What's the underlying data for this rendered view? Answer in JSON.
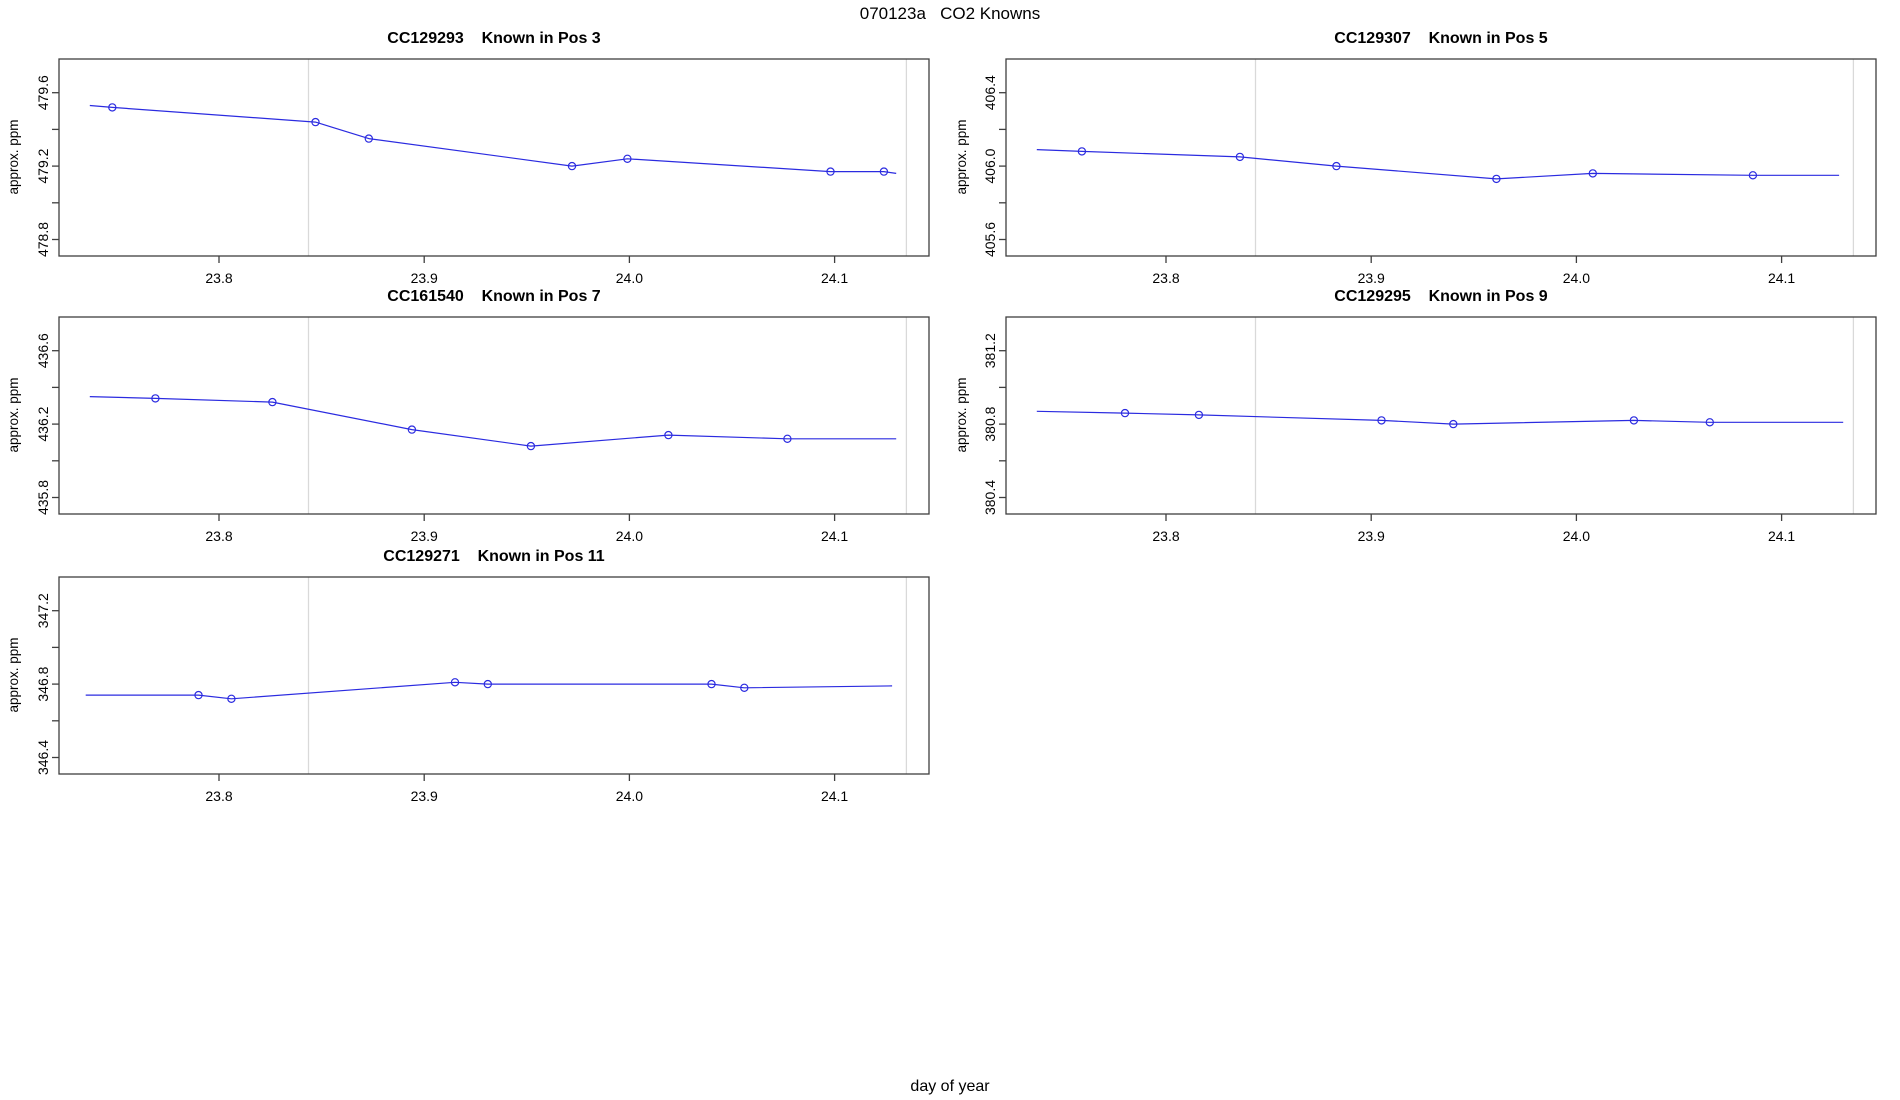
{
  "page_title": "070123a   CO2 Knowns",
  "labels": {
    "xlabel": "day of year",
    "ylabel": "approx. ppm"
  },
  "colors": {
    "line_blue": "#2b2be0",
    "grid_gray": "#d9d9d9",
    "axis_dark": "#3f3f3f",
    "text_black": "#000000",
    "background": "#ffffff"
  },
  "x_axis": {
    "domain": [
      23.722,
      24.146
    ],
    "ticks": [
      23.8,
      23.9,
      24.0,
      24.1
    ],
    "tick_labels": [
      "23.8",
      "23.9",
      "24.0",
      "24.1"
    ],
    "gridlines": [
      23.8436,
      24.135
    ]
  },
  "chart_data": [
    {
      "type": "line",
      "station": "CC129293",
      "position_label": "Known in Pos 3",
      "title": "CC129293    Known in Pos 3",
      "xlabel": "day of year",
      "ylabel": "approx. ppm",
      "row": 0,
      "col": 0,
      "y_ticks": [
        478.8,
        479.0,
        479.2,
        479.4,
        479.6
      ],
      "y_tick_labels": [
        "478.8",
        "",
        "479.2",
        "",
        "479.6"
      ],
      "ylim": [
        478.71,
        479.78
      ],
      "x": [
        23.748,
        23.847,
        23.873,
        23.972,
        23.999,
        24.098,
        24.124
      ],
      "y": [
        479.52,
        479.44,
        479.35,
        479.2,
        479.24,
        479.17,
        479.17
      ],
      "line_x": [
        23.737,
        23.748,
        23.847,
        23.873,
        23.972,
        23.999,
        24.098,
        24.124,
        24.13
      ],
      "line_y": [
        479.53,
        479.52,
        479.44,
        479.35,
        479.2,
        479.24,
        479.17,
        479.17,
        479.16
      ]
    },
    {
      "type": "line",
      "station": "CC129307",
      "position_label": "Known in Pos 5",
      "title": "CC129307    Known in Pos 5",
      "xlabel": "day of year",
      "ylabel": "approx. ppm",
      "row": 0,
      "col": 1,
      "y_ticks": [
        405.6,
        405.8,
        406.0,
        406.2,
        406.4
      ],
      "y_tick_labels": [
        "405.6",
        "",
        "406.0",
        "",
        "406.4"
      ],
      "ylim": [
        405.51,
        406.58
      ],
      "x": [
        23.759,
        23.836,
        23.883,
        23.961,
        24.008,
        24.086
      ],
      "y": [
        406.08,
        406.05,
        406.0,
        405.93,
        405.96,
        405.95
      ],
      "line_x": [
        23.737,
        23.759,
        23.836,
        23.883,
        23.961,
        24.008,
        24.086,
        24.128
      ],
      "line_y": [
        406.09,
        406.08,
        406.05,
        406.0,
        405.93,
        405.96,
        405.95,
        405.95
      ]
    },
    {
      "type": "line",
      "station": "CC161540",
      "position_label": "Known in Pos 7",
      "title": "CC161540    Known in Pos 7",
      "xlabel": "day of year",
      "ylabel": "approx. ppm",
      "row": 1,
      "col": 0,
      "y_ticks": [
        435.8,
        436.0,
        436.2,
        436.4,
        436.6
      ],
      "y_tick_labels": [
        "435.8",
        "",
        "436.2",
        "",
        "436.6"
      ],
      "ylim": [
        435.71,
        436.78
      ],
      "x": [
        23.769,
        23.826,
        23.894,
        23.952,
        24.019,
        24.077
      ],
      "y": [
        436.34,
        436.32,
        436.17,
        436.08,
        436.14,
        436.12
      ],
      "line_x": [
        23.737,
        23.769,
        23.826,
        23.894,
        23.952,
        24.019,
        24.077,
        24.13
      ],
      "line_y": [
        436.35,
        436.34,
        436.32,
        436.17,
        436.08,
        436.14,
        436.12,
        436.12
      ]
    },
    {
      "type": "line",
      "station": "CC129295",
      "position_label": "Known in Pos 9",
      "title": "CC129295    Known in Pos 9",
      "xlabel": "day of year",
      "ylabel": "approx. ppm",
      "row": 1,
      "col": 1,
      "y_ticks": [
        380.4,
        380.6,
        380.8,
        381.0,
        381.2
      ],
      "y_tick_labels": [
        "380.4",
        "",
        "380.8",
        "",
        "381.2"
      ],
      "ylim": [
        380.31,
        381.38
      ],
      "x": [
        23.78,
        23.816,
        23.905,
        23.94,
        24.028,
        24.065
      ],
      "y": [
        380.86,
        380.85,
        380.82,
        380.8,
        380.82,
        380.81
      ],
      "line_x": [
        23.737,
        23.78,
        23.816,
        23.905,
        23.94,
        24.028,
        24.065,
        24.13
      ],
      "line_y": [
        380.87,
        380.86,
        380.85,
        380.82,
        380.8,
        380.82,
        380.81,
        380.81
      ]
    },
    {
      "type": "line",
      "station": "CC129271",
      "position_label": "Known in Pos 11",
      "title": "CC129271    Known in Pos 11",
      "xlabel": "day of year",
      "ylabel": "approx. ppm",
      "row": 2,
      "col": 0,
      "y_ticks": [
        346.4,
        346.6,
        346.8,
        347.0,
        347.2
      ],
      "y_tick_labels": [
        "346.4",
        "",
        "346.8",
        "",
        "347.2"
      ],
      "ylim": [
        346.31,
        347.38
      ],
      "x": [
        23.79,
        23.806,
        23.915,
        23.931,
        24.04,
        24.056
      ],
      "y": [
        346.74,
        346.72,
        346.81,
        346.8,
        346.8,
        346.78
      ],
      "line_x": [
        23.735,
        23.79,
        23.806,
        23.915,
        23.931,
        24.04,
        24.056,
        24.128
      ],
      "line_y": [
        346.74,
        346.74,
        346.72,
        346.81,
        346.8,
        346.8,
        346.78,
        346.79
      ]
    }
  ]
}
